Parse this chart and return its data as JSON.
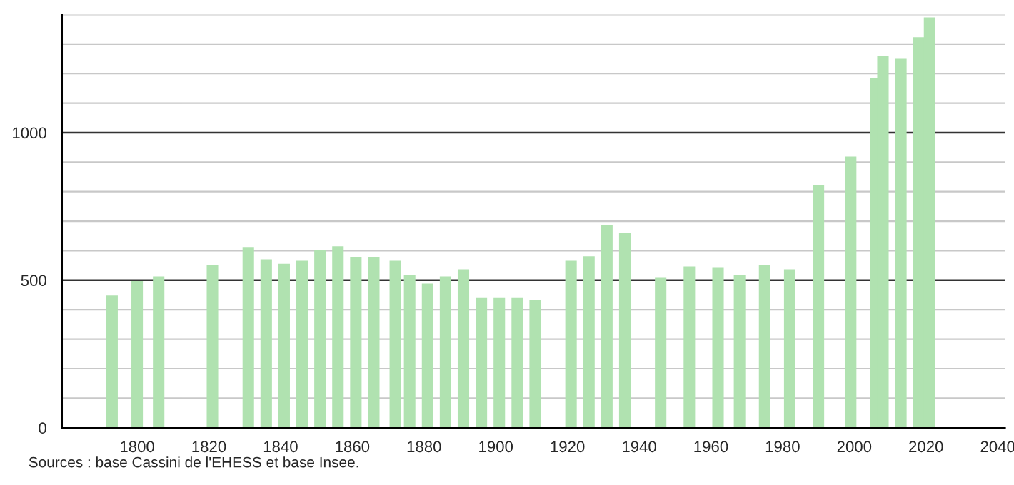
{
  "chart_data": {
    "type": "bar",
    "x": [
      1793,
      1800,
      1806,
      1821,
      1831,
      1836,
      1841,
      1846,
      1851,
      1856,
      1861,
      1866,
      1872,
      1876,
      1881,
      1886,
      1891,
      1896,
      1901,
      1906,
      1911,
      1921,
      1926,
      1931,
      1936,
      1946,
      1954,
      1962,
      1968,
      1975,
      1982,
      1990,
      1999,
      2006,
      2008,
      2013,
      2018,
      2021
    ],
    "values": [
      448,
      497,
      513,
      552,
      610,
      571,
      556,
      566,
      603,
      615,
      579,
      579,
      566,
      518,
      489,
      513,
      537,
      440,
      440,
      440,
      434,
      566,
      581,
      687,
      661,
      508,
      547,
      542,
      519,
      552,
      537,
      823,
      919,
      1185,
      1261,
      1250,
      1323,
      1390
    ],
    "color": "#b0e2b0",
    "xlim": [
      1779,
      2042
    ],
    "xticks": [
      1800,
      1820,
      1840,
      1860,
      1880,
      1900,
      1920,
      1940,
      1960,
      1980,
      2000,
      2020,
      2040
    ],
    "ylim": [
      0,
      1400
    ],
    "yticks": [
      0,
      {
        "value": 100,
        "label": null
      },
      {
        "value": 200,
        "label": null
      },
      {
        "value": 300,
        "label": null
      },
      {
        "value": 400,
        "label": null
      },
      500,
      {
        "value": 600,
        "label": null
      },
      {
        "value": 700,
        "label": null
      },
      {
        "value": 800,
        "label": null
      },
      {
        "value": 900,
        "label": null
      },
      1000,
      {
        "value": 1100,
        "label": null
      },
      {
        "value": 1200,
        "label": null
      },
      {
        "value": 1300,
        "label": null
      },
      {
        "value": 1400,
        "label": null
      }
    ],
    "grid": "y",
    "annotations": [
      "Sources : base Cassini de l'EHESS et base Insee."
    ]
  }
}
